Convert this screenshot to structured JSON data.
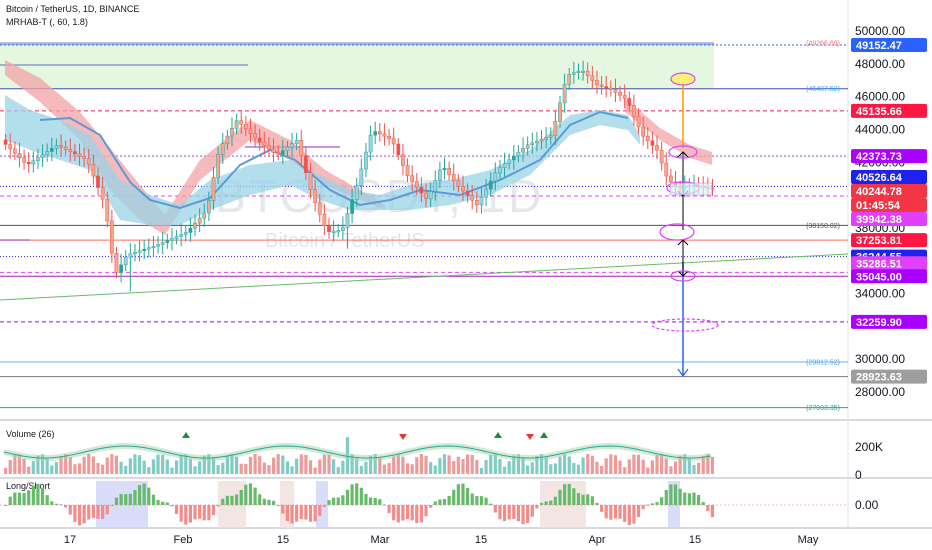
{
  "header": {
    "title": "Bitcoin / TetherUS, 1D, BINANCE",
    "indicator": "MRHAB-T (, 60, 1.8)"
  },
  "watermark": {
    "symbol": "BTCUSDT, 1D",
    "name": "Bitcoin / TetherUS"
  },
  "panels": {
    "volume_label": "Volume (26)",
    "ls_label": "Long/Short"
  },
  "colors": {
    "up": "#26a69a",
    "down": "#ef5350",
    "ha_orange": "#f7a78b",
    "ha_blue": "#9ad3e6",
    "ribbon_red": "#f3a3a6",
    "ema_blue": "#5b9bd5",
    "magenta": "#e040fb",
    "zone_green": "#e6f7e1"
  },
  "chart_data": {
    "type": "candlestick",
    "price_axis": {
      "range": [
        26400,
        50800
      ],
      "ticks": [
        "50000.00",
        "48000.00",
        "46000.00",
        "44000.00",
        "42000.00",
        "38000.00",
        "34000.00",
        "30000.00",
        "28000.00"
      ]
    },
    "time_axis": [
      "17",
      "Feb",
      "15",
      "Mar",
      "15",
      "Apr",
      "15",
      "May"
    ],
    "price_badges": [
      {
        "label": "49152.47",
        "bg": "#2962ff",
        "fg": "#ffffff"
      },
      {
        "label": "45135.66",
        "bg": "#ff1744",
        "fg": "#ffffff"
      },
      {
        "label": "42373.73",
        "bg": "#aa00ff",
        "fg": "#ffffff"
      },
      {
        "label": "40526.64",
        "bg": "#1e22f0",
        "fg": "#ffffff"
      },
      {
        "label": "40244.78",
        "bg": "#f23645",
        "fg": "#ffffff"
      },
      {
        "label": "01:45:54",
        "bg": "#f23645",
        "fg": "#ffffff"
      },
      {
        "label": "39942.38",
        "bg": "#e040fb",
        "fg": "#ffffff"
      },
      {
        "label": "37253.81",
        "bg": "#ff1744",
        "fg": "#ffffff"
      },
      {
        "label": "36244.55",
        "bg": "#1e22f0",
        "fg": "#ffffff"
      },
      {
        "label": "35286.51",
        "bg": "#e040fb",
        "fg": "#ffffff"
      },
      {
        "label": "35045.00",
        "bg": "#aa00ff",
        "fg": "#ffffff"
      },
      {
        "label": "32259.90",
        "bg": "#aa00ff",
        "fg": "#ffffff"
      },
      {
        "label": "28923.63",
        "bg": "#9e9e9e",
        "fg": "#ffffff"
      }
    ],
    "level_notes": [
      "(49266.69)",
      "(46487.52)",
      "(38150.02)",
      "(29812.52)",
      "(27033.35)"
    ],
    "volume_axis": [
      "200K",
      "0"
    ],
    "ls_axis": [
      "0.00"
    ]
  }
}
